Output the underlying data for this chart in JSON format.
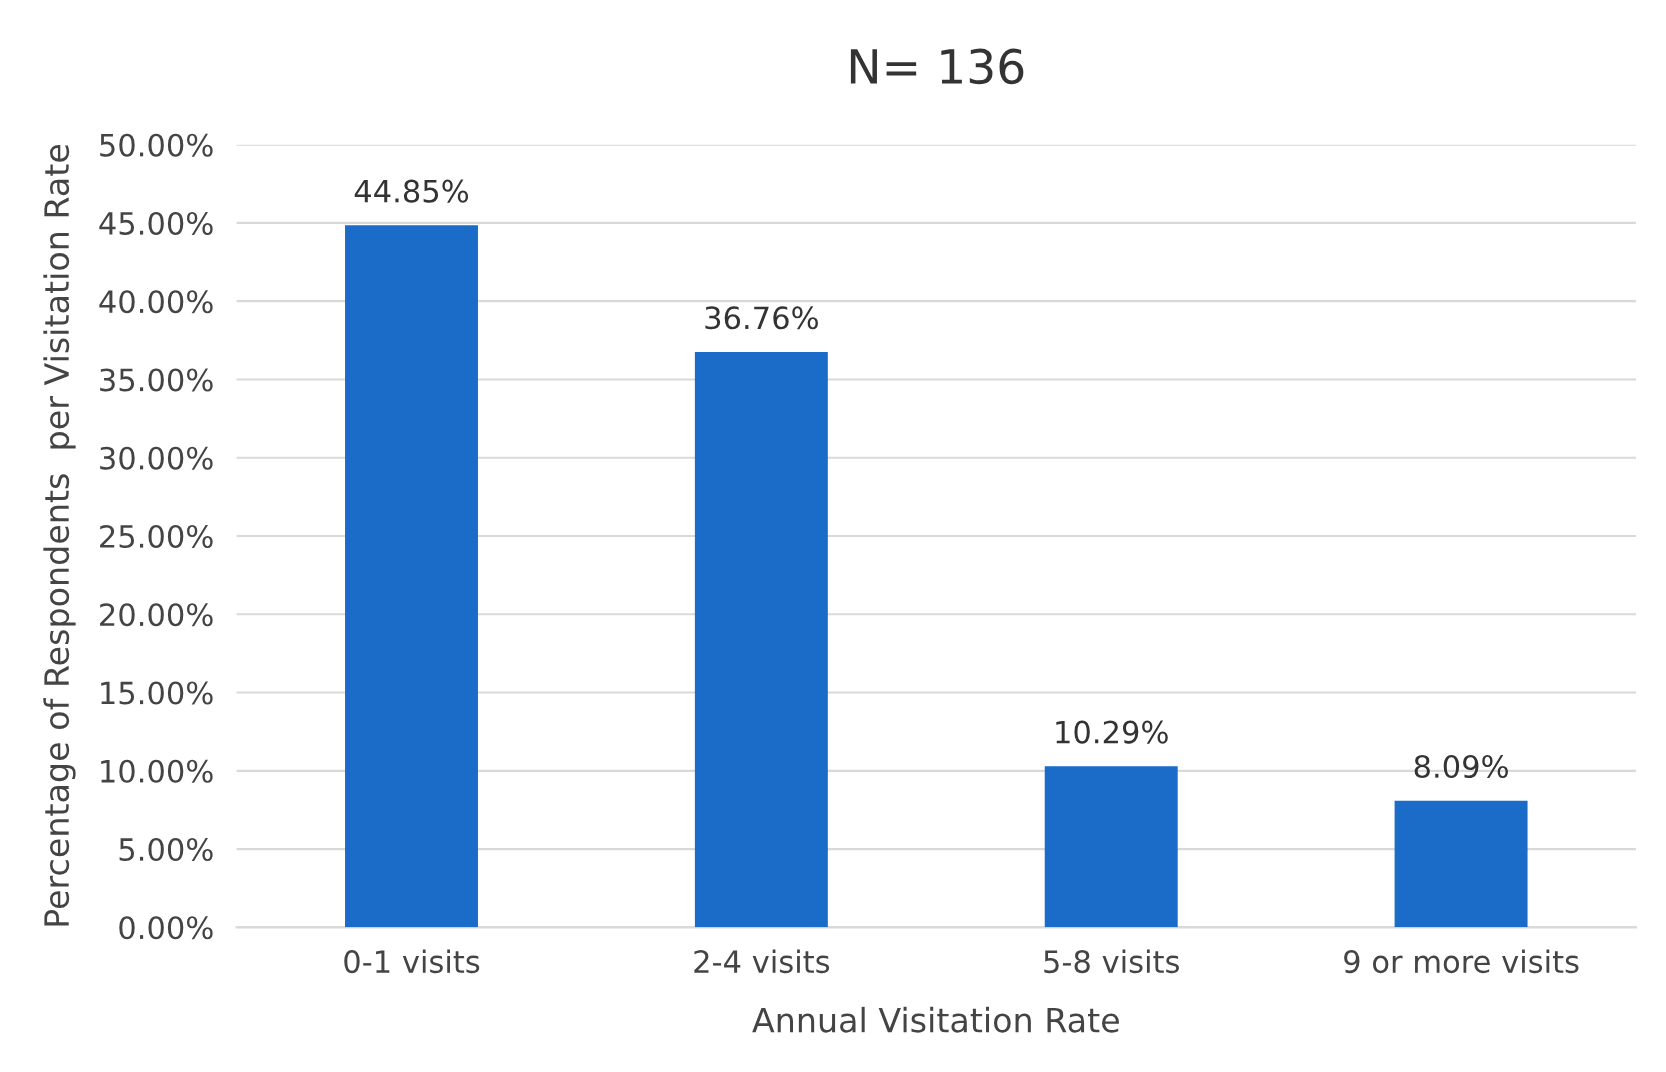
{
  "chart_data": {
    "type": "bar",
    "title": "N= 136",
    "xlabel": "Annual Visitation Rate",
    "ylabel": "Percentage of Respondents  per Visitation Rate",
    "categories": [
      "0-1 visits",
      "2-4 visits",
      "5-8 visits",
      "9 or more visits"
    ],
    "values": [
      44.85,
      36.76,
      10.29,
      8.09
    ],
    "value_labels": [
      "44.85%",
      "36.76%",
      "10.29%",
      "8.09%"
    ],
    "color": "#1a6cc8",
    "ylim": [
      0,
      50
    ],
    "yticks": [
      {
        "value": 0,
        "label": "0.00%"
      },
      {
        "value": 5,
        "label": "5.00%"
      },
      {
        "value": 10,
        "label": "10.00%"
      },
      {
        "value": 15,
        "label": "15.00%"
      },
      {
        "value": 20,
        "label": "20.00%"
      },
      {
        "value": 25,
        "label": "25.00%"
      },
      {
        "value": 30,
        "label": "30.00%"
      },
      {
        "value": 35,
        "label": "35.00%"
      },
      {
        "value": 40,
        "label": "40.00%"
      },
      {
        "value": 45,
        "label": "45.00%"
      },
      {
        "value": 50,
        "label": "50.00%"
      }
    ],
    "grid": "y",
    "legend": false
  }
}
